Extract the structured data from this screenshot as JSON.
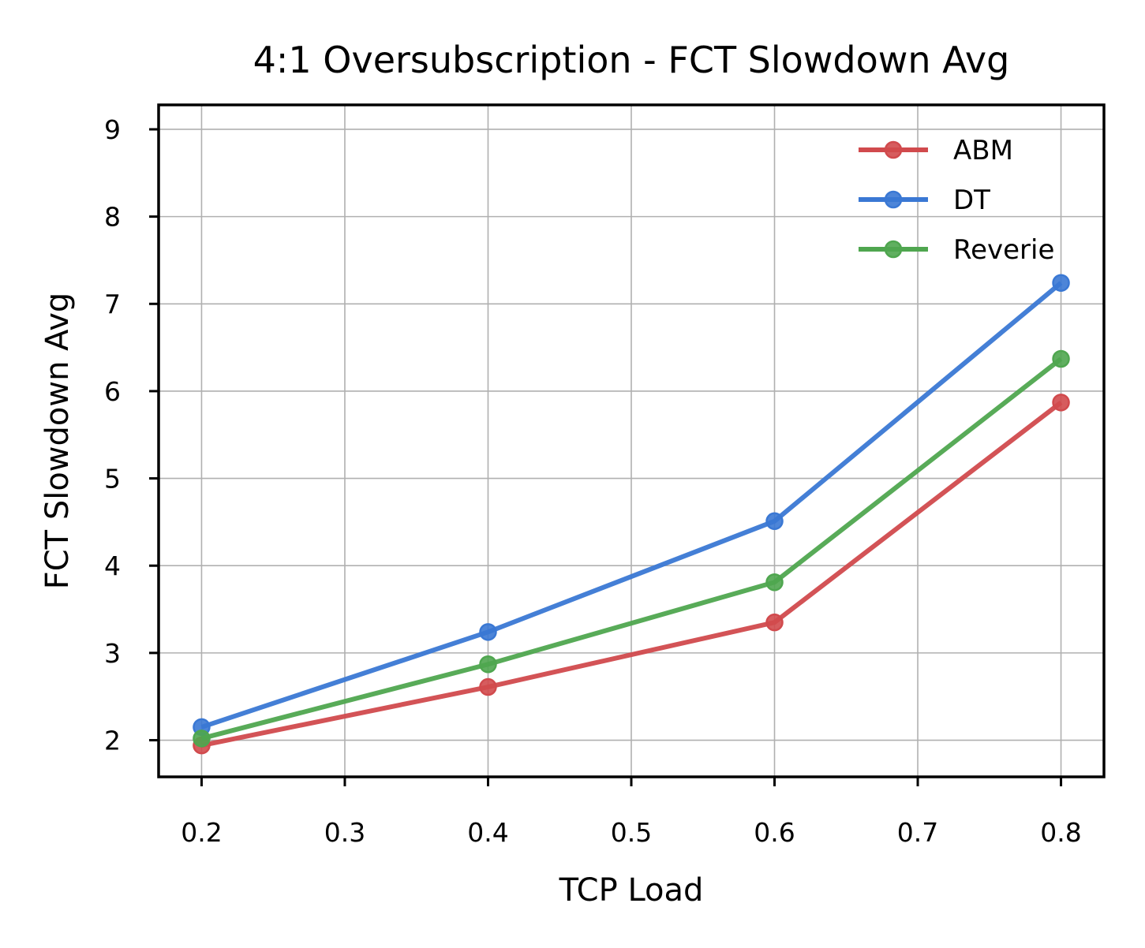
{
  "chart_data": {
    "type": "line",
    "title": "4:1 Oversubscription - FCT Slowdown Avg",
    "xlabel": "TCP Load",
    "ylabel": "FCT Slowdown Avg",
    "x": [
      0.2,
      0.4,
      0.6,
      0.8
    ],
    "xlim": [
      0.17,
      0.83
    ],
    "ylim": [
      1.58,
      9.28
    ],
    "xticks": [
      0.2,
      0.3,
      0.4,
      0.5,
      0.6,
      0.7,
      0.8
    ],
    "xtick_labels": [
      "0.2",
      "0.3",
      "0.4",
      "0.5",
      "0.6",
      "0.7",
      "0.8"
    ],
    "yticks": [
      2,
      3,
      4,
      5,
      6,
      7,
      8,
      9
    ],
    "ytick_labels": [
      "2",
      "3",
      "4",
      "5",
      "6",
      "7",
      "8",
      "9"
    ],
    "grid": true,
    "legend_position": "top-right",
    "series": [
      {
        "name": "ABM",
        "color": "#d14a4d",
        "values": [
          1.94,
          2.61,
          3.35,
          5.87
        ]
      },
      {
        "name": "DT",
        "color": "#3a78d4",
        "values": [
          2.15,
          3.24,
          4.51,
          7.24
        ]
      },
      {
        "name": "Reverie",
        "color": "#4fa64f",
        "values": [
          2.02,
          2.87,
          3.81,
          6.37
        ]
      }
    ]
  }
}
